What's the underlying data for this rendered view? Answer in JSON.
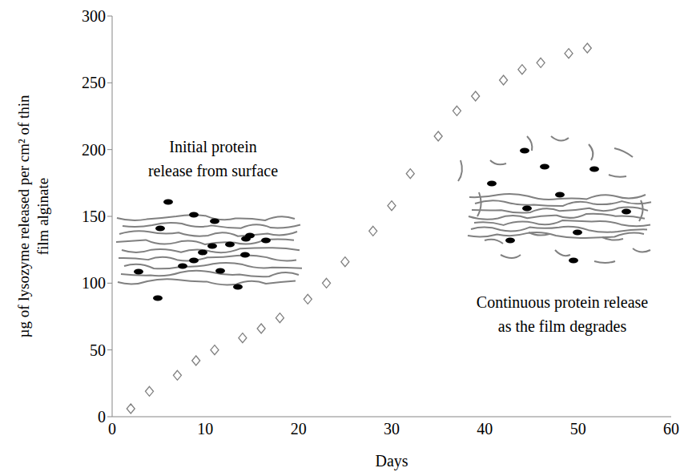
{
  "chart_data": {
    "type": "scatter",
    "x": [
      2,
      4,
      7,
      9,
      11,
      14,
      16,
      18,
      21,
      23,
      25,
      28,
      30,
      32,
      35,
      37,
      39,
      42,
      44,
      46,
      49,
      51
    ],
    "values": [
      6,
      19,
      31,
      42,
      50,
      59,
      66,
      74,
      88,
      100,
      116,
      139,
      158,
      182,
      210,
      229,
      240,
      252,
      260,
      265,
      272,
      276
    ],
    "xlim": [
      0,
      60
    ],
    "xticks": [
      0,
      10,
      20,
      30,
      40,
      50,
      60
    ],
    "ylim": [
      0,
      300
    ],
    "yticks": [
      0,
      50,
      100,
      150,
      200,
      250,
      300
    ],
    "xlabel": "Days",
    "ylabel": "µg of lysozyme released per cm² of thin film alginate",
    "annotations": [
      {
        "text": "Initial protein release from surface"
      },
      {
        "text": "Continuous protein release as the film degrades"
      }
    ],
    "color": "#7f7f7f",
    "marker": "diamond",
    "grid": false
  }
}
